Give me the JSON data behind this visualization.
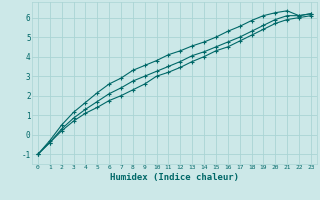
{
  "xlabel": "Humidex (Indice chaleur)",
  "ylabel": "",
  "xlim": [
    -0.5,
    23.5
  ],
  "ylim": [
    -1.5,
    6.8
  ],
  "xticks": [
    0,
    1,
    2,
    3,
    4,
    5,
    6,
    7,
    8,
    9,
    10,
    11,
    12,
    13,
    14,
    15,
    16,
    17,
    18,
    19,
    20,
    21,
    22,
    23
  ],
  "yticks": [
    -1,
    0,
    1,
    2,
    3,
    4,
    5,
    6
  ],
  "background_color": "#cce8e8",
  "grid_color": "#aad4d4",
  "line_color": "#006868",
  "humidex_x": [
    0,
    1,
    2,
    3,
    4,
    5,
    6,
    7,
    8,
    9,
    10,
    11,
    12,
    13,
    14,
    15,
    16,
    17,
    18,
    19,
    20,
    21,
    22,
    23
  ],
  "curve_low": [
    -1.0,
    -0.4,
    0.2,
    0.7,
    1.1,
    1.4,
    1.75,
    2.0,
    2.3,
    2.6,
    3.0,
    3.2,
    3.45,
    3.75,
    4.0,
    4.3,
    4.5,
    4.8,
    5.1,
    5.4,
    5.7,
    5.9,
    6.0,
    6.1
  ],
  "curve_mid": [
    -1.0,
    -0.4,
    0.3,
    0.85,
    1.3,
    1.7,
    2.1,
    2.4,
    2.75,
    3.0,
    3.25,
    3.5,
    3.75,
    4.05,
    4.25,
    4.5,
    4.75,
    5.0,
    5.3,
    5.6,
    5.9,
    6.1,
    6.1,
    6.2
  ],
  "curve_high": [
    -1.0,
    -0.3,
    0.5,
    1.15,
    1.65,
    2.15,
    2.6,
    2.9,
    3.3,
    3.55,
    3.8,
    4.1,
    4.3,
    4.55,
    4.75,
    5.0,
    5.3,
    5.55,
    5.85,
    6.1,
    6.25,
    6.35,
    6.1,
    6.2
  ]
}
